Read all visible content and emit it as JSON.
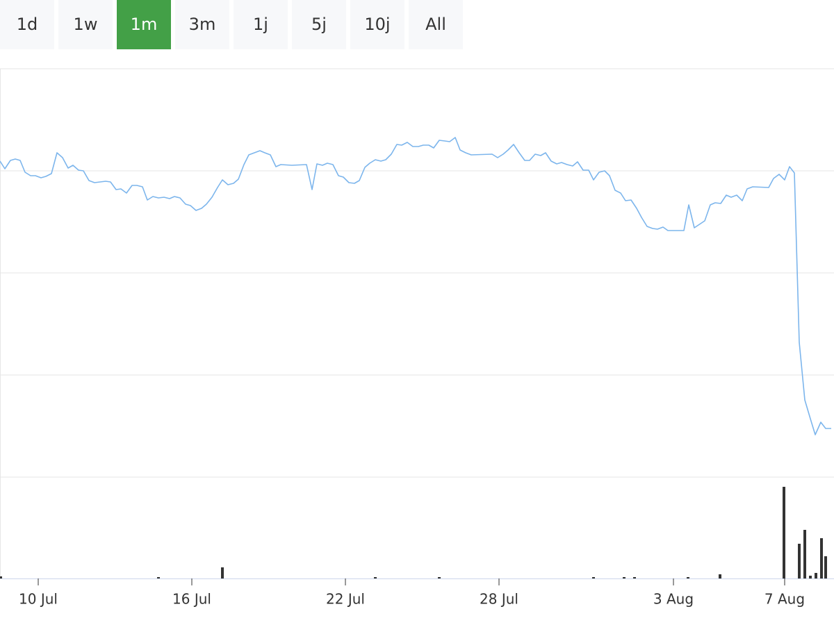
{
  "range_buttons": {
    "labels": [
      "1d",
      "1w",
      "1m",
      "3m",
      "1j",
      "5j",
      "10j",
      "All"
    ],
    "active": 2
  },
  "chart_data": [
    {
      "type": "line",
      "color": "#7cb5ec",
      "grid": true,
      "xlim": [
        0,
        1200
      ],
      "ylim": [
        0,
        588
      ],
      "yticks": [
        0,
        147,
        294,
        441,
        588
      ],
      "x": [
        0,
        7,
        15,
        22,
        29,
        36,
        44,
        51,
        59,
        66,
        74,
        82,
        90,
        98,
        105,
        113,
        120,
        128,
        136,
        152,
        159,
        167,
        174,
        182,
        190,
        197,
        205,
        212,
        220,
        228,
        236,
        244,
        251,
        259,
        267,
        274,
        282,
        290,
        297,
        305,
        313,
        320,
        328,
        336,
        343,
        351,
        358,
        366,
        374,
        381,
        389,
        397,
        404,
        420,
        441,
        449,
        456,
        464,
        471,
        479,
        487,
        494,
        502,
        510,
        517,
        525,
        532,
        540,
        548,
        555,
        563,
        571,
        578,
        586,
        594,
        602,
        609,
        617,
        624,
        632,
        640,
        647,
        655,
        662,
        670,
        678,
        708,
        716,
        724,
        731,
        739,
        747,
        755,
        762,
        770,
        778,
        785,
        793,
        801,
        808,
        816,
        824,
        831,
        839,
        847,
        854,
        862,
        870,
        877,
        885,
        893,
        900,
        908,
        916,
        923,
        931,
        939,
        946,
        954,
        961,
        984,
        991,
        999,
        1014,
        1022,
        1029,
        1037,
        1045,
        1052,
        1060,
        1068,
        1075,
        1083,
        1106,
        1113,
        1121,
        1129,
        1136,
        1143,
        1150,
        1158,
        1166,
        1173,
        1181,
        1188,
        1196
      ],
      "values": [
        455,
        444,
        456,
        458,
        456,
        439,
        434,
        434,
        431,
        433,
        437,
        467,
        460,
        445,
        449,
        442,
        441,
        427,
        424,
        426,
        425,
        414,
        415,
        409,
        420,
        420,
        418,
        399,
        404,
        402,
        403,
        401,
        404,
        402,
        393,
        391,
        384,
        387,
        393,
        403,
        417,
        428,
        421,
        423,
        429,
        450,
        464,
        467,
        470,
        467,
        464,
        447,
        450,
        449,
        450,
        414,
        451,
        449,
        452,
        450,
        434,
        432,
        424,
        423,
        427,
        446,
        452,
        457,
        455,
        457,
        465,
        479,
        478,
        482,
        476,
        476,
        478,
        478,
        474,
        485,
        484,
        483,
        489,
        471,
        467,
        464,
        465,
        460,
        465,
        471,
        479,
        467,
        456,
        456,
        465,
        463,
        467,
        455,
        451,
        453,
        450,
        448,
        454,
        442,
        442,
        428,
        439,
        441,
        434,
        413,
        409,
        398,
        399,
        387,
        374,
        361,
        358,
        357,
        360,
        355,
        355,
        392,
        359,
        369,
        392,
        395,
        394,
        406,
        403,
        406,
        398,
        415,
        418,
        417,
        430,
        436,
        428,
        447,
        438,
        194,
        111,
        84,
        61,
        79,
        70,
        70
      ]
    },
    {
      "type": "bar",
      "color": "#333333",
      "xlim": [
        0,
        1200
      ],
      "ylim": [
        0,
        146
      ],
      "xticks": [
        {
          "value": 55,
          "label": "10 Jul"
        },
        {
          "value": 276,
          "label": "16 Jul"
        },
        {
          "value": 497,
          "label": "22 Jul"
        },
        {
          "value": 718,
          "label": "28 Jul"
        },
        {
          "value": 969,
          "label": "3 Aug"
        },
        {
          "value": 1129,
          "label": "7 Aug"
        }
      ],
      "x": [
        1,
        228,
        320,
        540,
        632,
        854,
        898,
        913,
        990,
        1036,
        1128,
        1150,
        1158,
        1166,
        1174,
        1182,
        1188
      ],
      "values": [
        3,
        2,
        16,
        2,
        2,
        2,
        2,
        2,
        2,
        6,
        132,
        50,
        70,
        4,
        8,
        58,
        32
      ]
    }
  ]
}
